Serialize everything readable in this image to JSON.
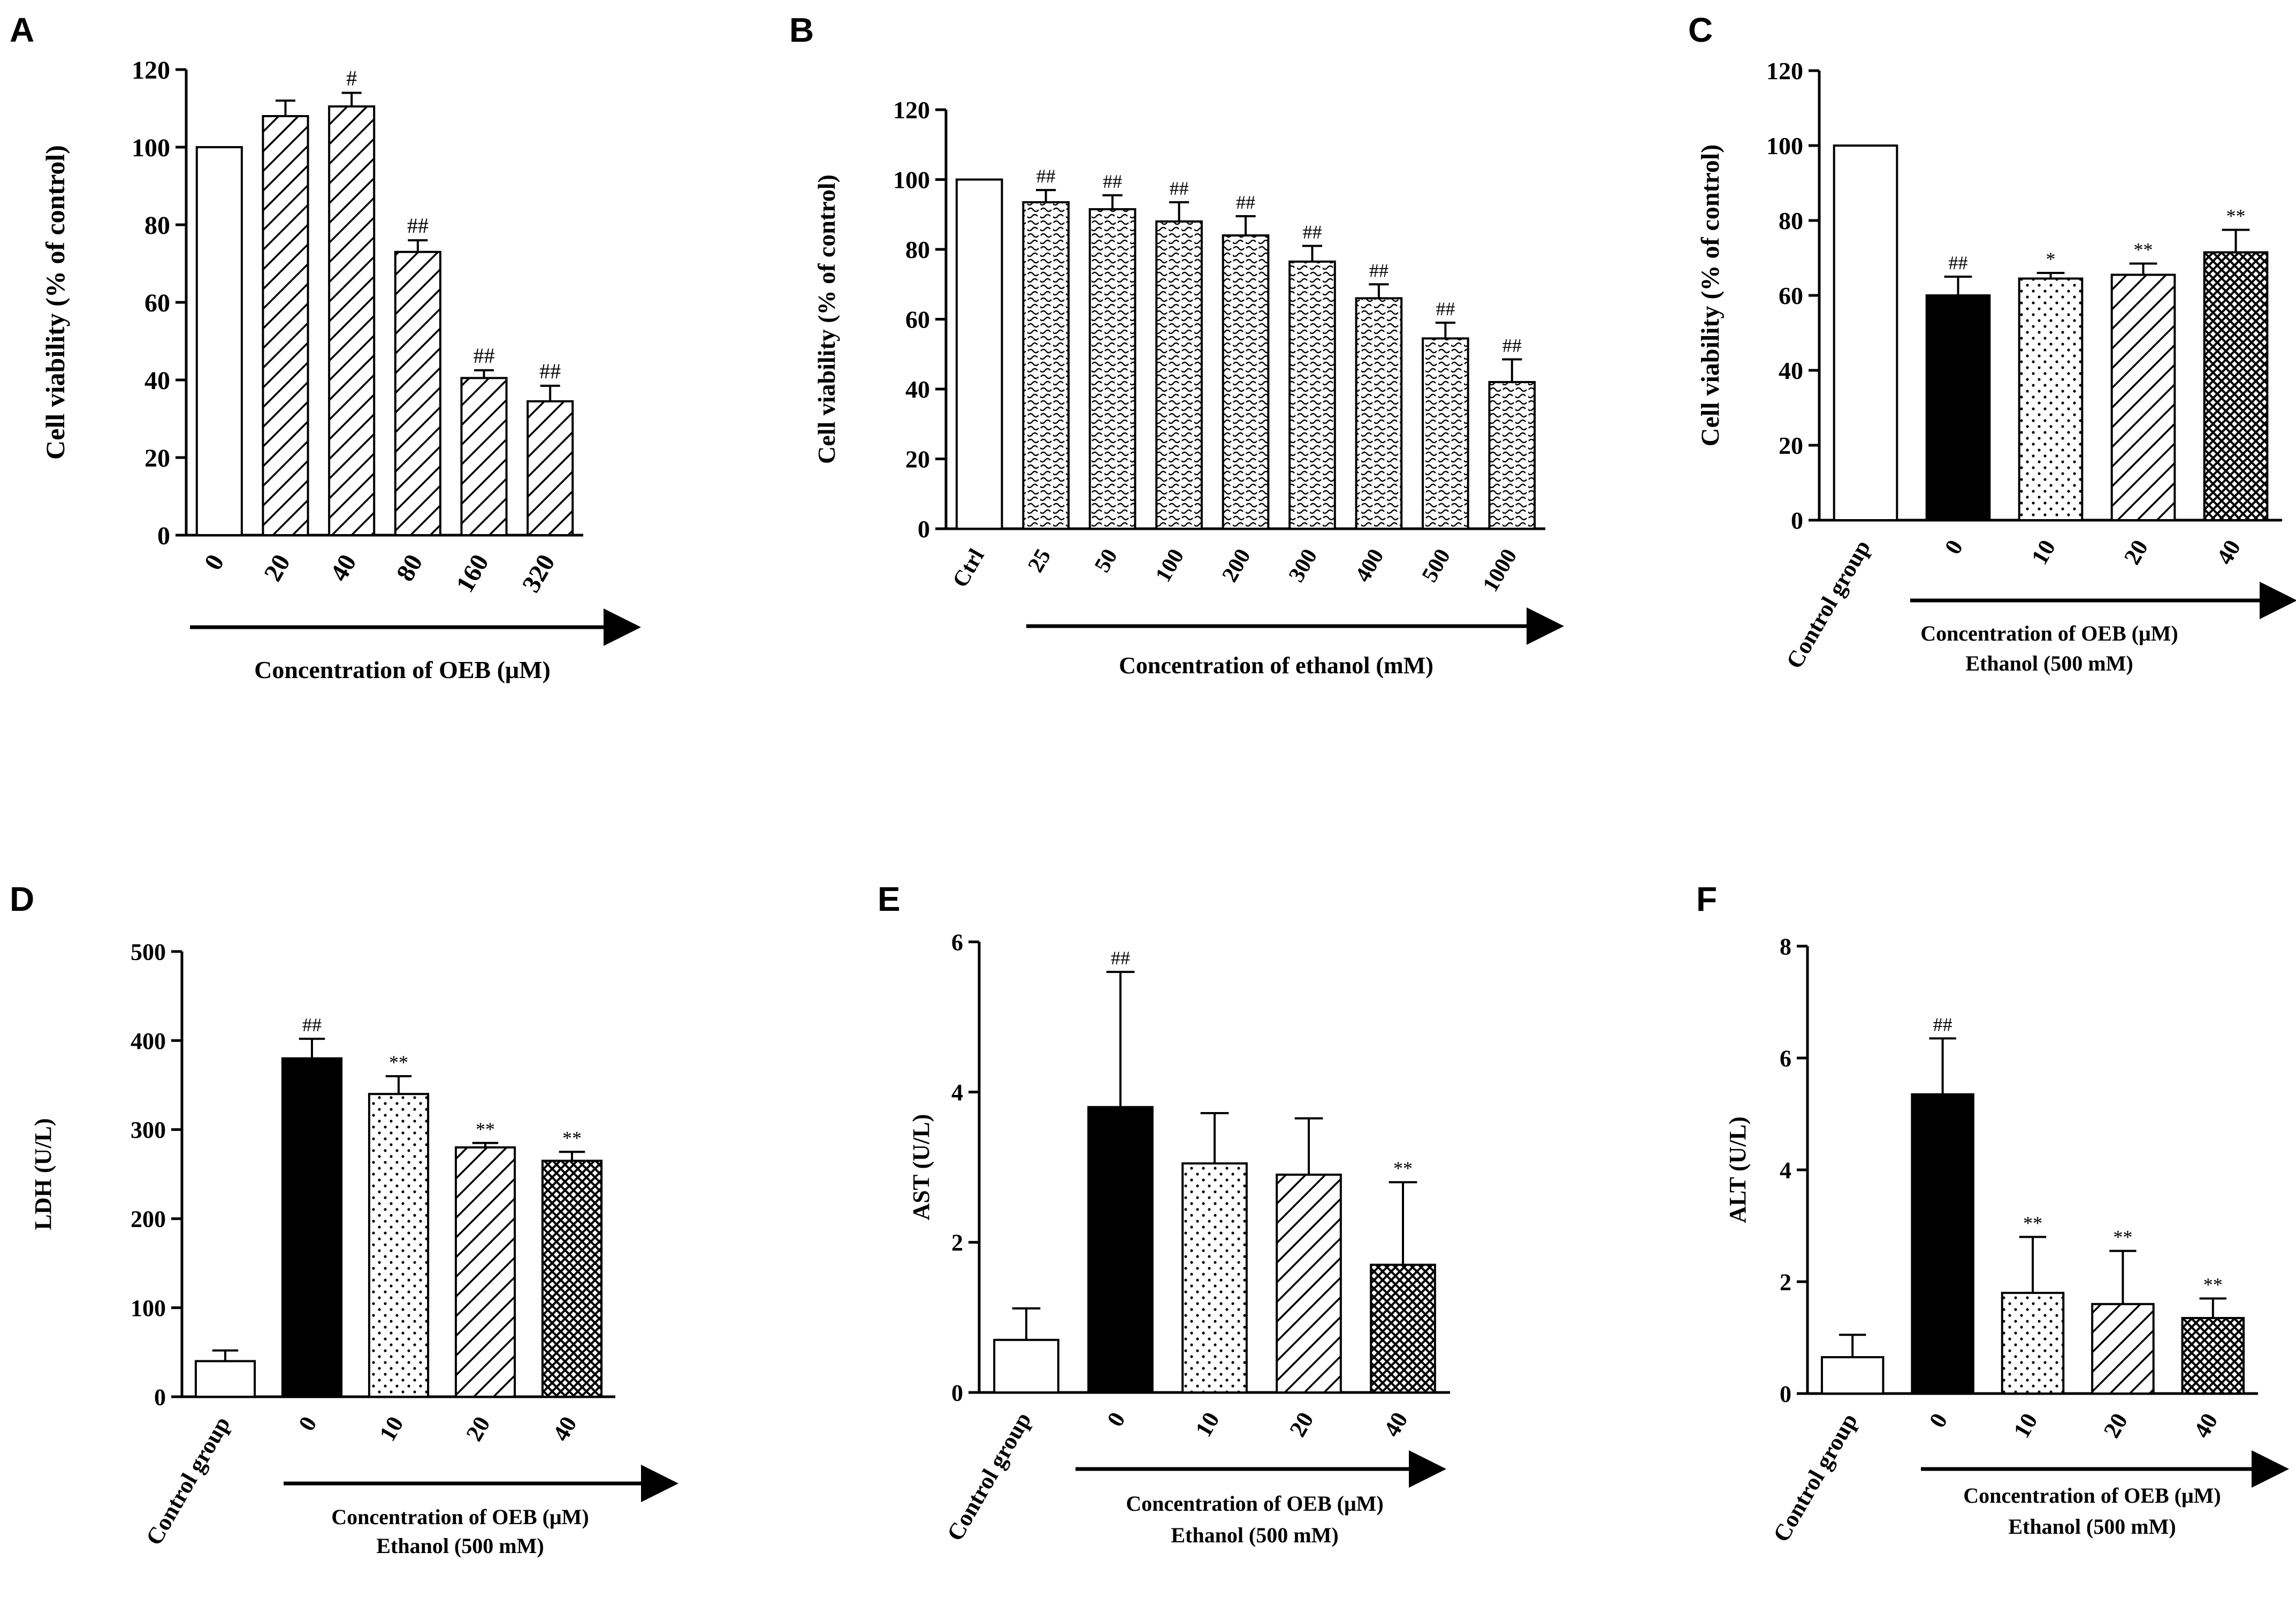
{
  "figure": {
    "panels": [
      "A",
      "B",
      "C",
      "D",
      "E",
      "F"
    ]
  },
  "colors": {
    "ink": "#000000",
    "paper": "#ffffff",
    "error_bar": "#000000"
  },
  "chart_data": [
    {
      "panel": "A",
      "type": "bar",
      "ylabel": "Cell viability (% of control)",
      "xlabel": "Concentration of OEB (μM)",
      "xlabel2": "",
      "ylim": [
        0,
        120
      ],
      "yticks": [
        0,
        20,
        40,
        60,
        80,
        100,
        120
      ],
      "categories": [
        "0",
        "20",
        "40",
        "80",
        "160",
        "320"
      ],
      "values": [
        100,
        108,
        110.5,
        73,
        40.5,
        34.5
      ],
      "errors": [
        0,
        4,
        3.5,
        3,
        2,
        4
      ],
      "annotations": [
        "",
        "",
        "#",
        "##",
        "##",
        "##"
      ],
      "patterns": [
        "open",
        "diag",
        "diag",
        "diag",
        "diag",
        "diag"
      ],
      "arrow_start_index": 0
    },
    {
      "panel": "B",
      "type": "bar",
      "ylabel": "Cell viability (% of control)",
      "xlabel": "Concentration of ethanol (mM)",
      "xlabel2": "",
      "ylim": [
        0,
        120
      ],
      "yticks": [
        0,
        20,
        40,
        60,
        80,
        100,
        120
      ],
      "categories": [
        "Ctrl",
        "25",
        "50",
        "100",
        "200",
        "300",
        "400",
        "500",
        "1000"
      ],
      "values": [
        100,
        93.5,
        91.5,
        88,
        84,
        76.5,
        66,
        54.5,
        42
      ],
      "errors": [
        0,
        3.5,
        4,
        5.5,
        5.5,
        4.5,
        4,
        4.5,
        6.5
      ],
      "annotations": [
        "",
        "##",
        "##",
        "##",
        "##",
        "##",
        "##",
        "##",
        "##"
      ],
      "patterns": [
        "open",
        "wave",
        "wave",
        "wave",
        "wave",
        "wave",
        "wave",
        "wave",
        "wave"
      ],
      "arrow_start_index": 1
    },
    {
      "panel": "C",
      "type": "bar",
      "ylabel": "Cell viability (% of control)",
      "xlabel": "Concentration of OEB (μM)",
      "xlabel2": "Ethanol (500 mM)",
      "ylim": [
        0,
        120
      ],
      "yticks": [
        0,
        20,
        40,
        60,
        80,
        100,
        120
      ],
      "categories": [
        "Control group",
        "0",
        "10",
        "20",
        "40"
      ],
      "values": [
        100,
        60,
        64.5,
        65.5,
        71.5
      ],
      "errors": [
        0,
        5,
        1.5,
        3,
        6
      ],
      "annotations": [
        "",
        "##",
        "*",
        "**",
        "**"
      ],
      "patterns": [
        "open",
        "solid",
        "dots",
        "diag",
        "cross"
      ],
      "arrow_start_index": 1
    },
    {
      "panel": "D",
      "type": "bar",
      "ylabel": "LDH (U/L)",
      "xlabel": "Concentration of OEB (μM)",
      "xlabel2": "Ethanol (500 mM)",
      "ylim": [
        0,
        500
      ],
      "yticks": [
        0,
        100,
        200,
        300,
        400,
        500
      ],
      "categories": [
        "Control group",
        "0",
        "10",
        "20",
        "40"
      ],
      "values": [
        40,
        380,
        340,
        280,
        265
      ],
      "errors": [
        12,
        22,
        20,
        5,
        10
      ],
      "annotations": [
        "",
        "##",
        "**",
        "**",
        "**"
      ],
      "patterns": [
        "open",
        "solid",
        "dots",
        "diag",
        "cross"
      ],
      "arrow_start_index": 1
    },
    {
      "panel": "E",
      "type": "bar",
      "ylabel": "AST (U/L)",
      "xlabel": "Concentration of OEB (μM)",
      "xlabel2": "Ethanol (500 mM)",
      "ylim": [
        0,
        6
      ],
      "yticks": [
        0,
        2,
        4,
        6
      ],
      "categories": [
        "Control group",
        "0",
        "10",
        "20",
        "40"
      ],
      "values": [
        0.7,
        3.8,
        3.05,
        2.9,
        1.7
      ],
      "errors": [
        0.42,
        1.8,
        0.67,
        0.75,
        1.1
      ],
      "annotations": [
        "",
        "##",
        "",
        "",
        "**"
      ],
      "patterns": [
        "open",
        "solid",
        "dots",
        "diag",
        "cross"
      ],
      "arrow_start_index": 1
    },
    {
      "panel": "F",
      "type": "bar",
      "ylabel": "ALT (U/L)",
      "xlabel": "Concentration of OEB (μM)",
      "xlabel2": "Ethanol (500 mM)",
      "ylim": [
        0,
        8
      ],
      "yticks": [
        0,
        2,
        4,
        6,
        8
      ],
      "categories": [
        "Control group",
        "0",
        "10",
        "20",
        "40"
      ],
      "values": [
        0.65,
        5.35,
        1.8,
        1.6,
        1.35
      ],
      "errors": [
        0.4,
        1.0,
        1.0,
        0.95,
        0.35
      ],
      "annotations": [
        "",
        "##",
        "**",
        "**",
        "**"
      ],
      "patterns": [
        "open",
        "solid",
        "dots",
        "diag",
        "cross"
      ],
      "arrow_start_index": 1
    }
  ]
}
